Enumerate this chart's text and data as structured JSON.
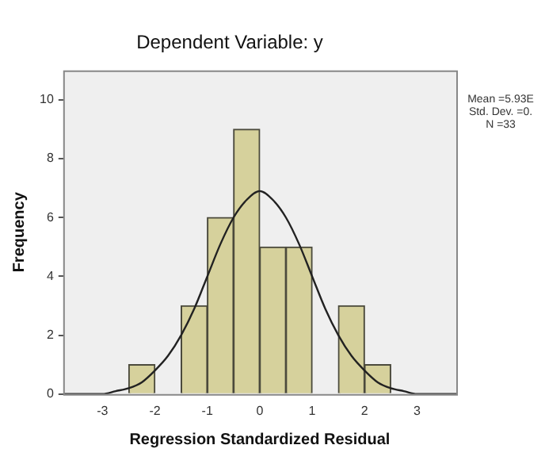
{
  "chart_data": {
    "type": "histogram",
    "title": "Dependent Variable: y",
    "xlabel": "Regression Standardized Residual",
    "ylabel": "Frequency",
    "bins": [
      -2.5,
      -2,
      -1.5,
      -1,
      -0.5,
      0,
      0.5,
      1,
      1.5,
      2,
      2.5
    ],
    "values": [
      1,
      0,
      3,
      6,
      9,
      5,
      5,
      0,
      3,
      1
    ],
    "color": "#d6d19c",
    "series": [
      {
        "type": "line",
        "color": "#222222",
        "x": [
          -3.75,
          -3.5,
          -3.25,
          -3,
          -2.75,
          -2.5,
          -2.25,
          -2,
          -1.75,
          -1.5,
          -1.25,
          -1,
          -0.75,
          -0.5,
          -0.25,
          0,
          0.25,
          0.5,
          0.75,
          1,
          1.25,
          1.5,
          1.75,
          2,
          2.25,
          2.5,
          2.75,
          3,
          3.25,
          3.5,
          3.75
        ],
        "values": [
          0,
          0,
          0,
          0,
          0.1,
          0.2,
          0.4,
          0.8,
          1.3,
          2,
          2.9,
          4,
          5.1,
          6,
          6.6,
          6.9,
          6.6,
          6,
          5.1,
          4,
          2.9,
          2,
          1.3,
          0.8,
          0.4,
          0.2,
          0.1,
          0,
          0,
          0,
          0
        ]
      }
    ],
    "xlim": [
      -3.75,
      3.75
    ],
    "xticks": [
      -3,
      -2,
      -1,
      0,
      1,
      2,
      3
    ],
    "ylim": [
      0,
      11
    ],
    "yticks": [
      0,
      2,
      4,
      6,
      8,
      10
    ],
    "grid": false,
    "legend": false,
    "marker": "none",
    "annotations": [
      "Mean =5.93E",
      "Std. Dev. =0.",
      "N =33"
    ]
  }
}
